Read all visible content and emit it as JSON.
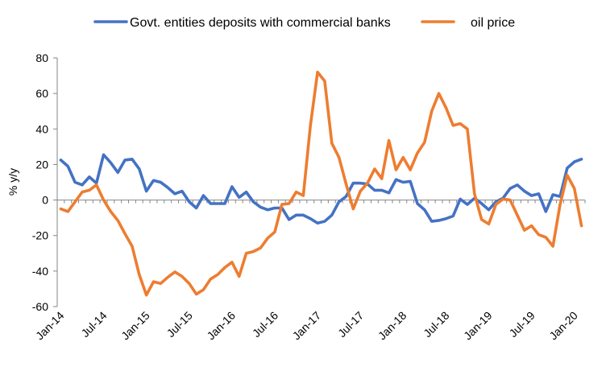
{
  "chart_data": {
    "type": "line",
    "title": "",
    "xlabel": "",
    "ylabel": "% y/y",
    "ylim": [
      -60,
      80
    ],
    "yticks": [
      -60,
      -40,
      -20,
      0,
      20,
      40,
      60,
      80
    ],
    "x_tick_labels": [
      "Jan-14",
      "Jul-14",
      "Jan-15",
      "Jul-15",
      "Jan-16",
      "Jul-16",
      "Jan-17",
      "Jul-17",
      "Jan-18",
      "Jul-18",
      "Jan-19",
      "Jul-19",
      "Jan-20"
    ],
    "x_tick_step_months": 6,
    "grid": false,
    "legend_position": "top",
    "series": [
      {
        "name": "Govt. entities deposits with commercial banks",
        "color": "#4472C4",
        "values": [
          22.5,
          19,
          10,
          8.5,
          13,
          9.5,
          25.5,
          21,
          15.5,
          22.5,
          23,
          17.5,
          5,
          11,
          10,
          7,
          3.5,
          5,
          -1,
          -4.5,
          2.5,
          -2,
          -2,
          -2,
          7.5,
          1.5,
          4.5,
          -1,
          -4,
          -5.5,
          -4.5,
          -4.5,
          -11,
          -8.5,
          -8.5,
          -10.5,
          -13,
          -12,
          -8.5,
          -1,
          2,
          9.5,
          9.5,
          9,
          5.5,
          5.5,
          4,
          11.5,
          10,
          10.5,
          -2,
          -5.5,
          -12,
          -11.5,
          -10.5,
          -9,
          0.5,
          -2.5,
          1,
          -2,
          -5.5,
          -1,
          1,
          6.5,
          8.5,
          5,
          2.5,
          3.5,
          -6.5,
          3,
          2,
          18,
          21.5,
          23
        ]
      },
      {
        "name": "oil price",
        "color": "#ED7D31",
        "values": [
          -5,
          -6.5,
          -1,
          4.5,
          5.5,
          8.5,
          0,
          -6.5,
          -11.5,
          -19,
          -26,
          -42,
          -53.5,
          -46,
          -47,
          -43.5,
          -40.5,
          -43,
          -47,
          -53,
          -50.5,
          -44.5,
          -42,
          -38,
          -35,
          -43,
          -30,
          -29,
          -27,
          -21.5,
          -18,
          -2.5,
          -2,
          4.5,
          2.5,
          42,
          72,
          67,
          32,
          24,
          9,
          -5,
          5,
          9.5,
          17.5,
          12,
          33.5,
          17,
          24,
          17,
          26.5,
          32.5,
          50,
          60,
          52,
          42,
          43,
          40,
          3.5,
          -11,
          -13.5,
          -2.5,
          0.5,
          0,
          -8.5,
          -17,
          -14.5,
          -19.5,
          -21,
          -26,
          -2.5,
          14,
          6.5,
          -14.5
        ]
      }
    ]
  }
}
